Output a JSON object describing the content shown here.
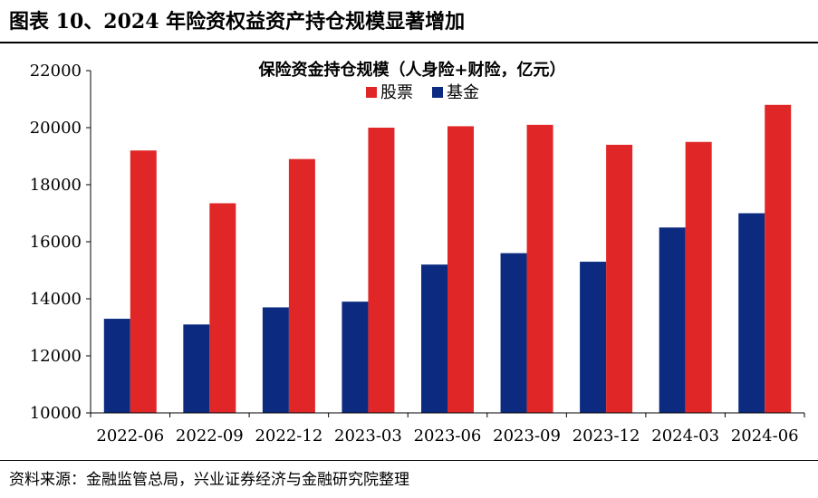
{
  "figure_title": "图表 10、2024 年险资权益资产持仓规模显著增加",
  "source_note": "资料来源：金融监管总局，兴业证券经济与金融研究院整理",
  "colors": {
    "stock": "#e02626",
    "fund": "#0b2a80",
    "axis": "#000000",
    "text": "#000000"
  },
  "chart_data": {
    "type": "bar",
    "title": "保险资金持仓规模（人身险+财险，亿元）",
    "xlabel": "",
    "ylabel": "",
    "categories": [
      "2022-06",
      "2022-09",
      "2022-12",
      "2023-03",
      "2023-06",
      "2023-09",
      "2023-12",
      "2024-03",
      "2024-06"
    ],
    "series": [
      {
        "name": "基金",
        "values": [
          13300,
          13100,
          13700,
          13900,
          15200,
          15600,
          15300,
          16500,
          17000
        ]
      },
      {
        "name": "股票",
        "values": [
          19200,
          17350,
          18900,
          20000,
          20050,
          20100,
          19400,
          19500,
          20800
        ]
      }
    ],
    "legend_order": [
      "股票",
      "基金"
    ],
    "legend_position": "top-center",
    "ylim": [
      10000,
      22000
    ],
    "yticks": [
      10000,
      12000,
      14000,
      16000,
      18000,
      20000,
      22000
    ],
    "grid": false
  }
}
